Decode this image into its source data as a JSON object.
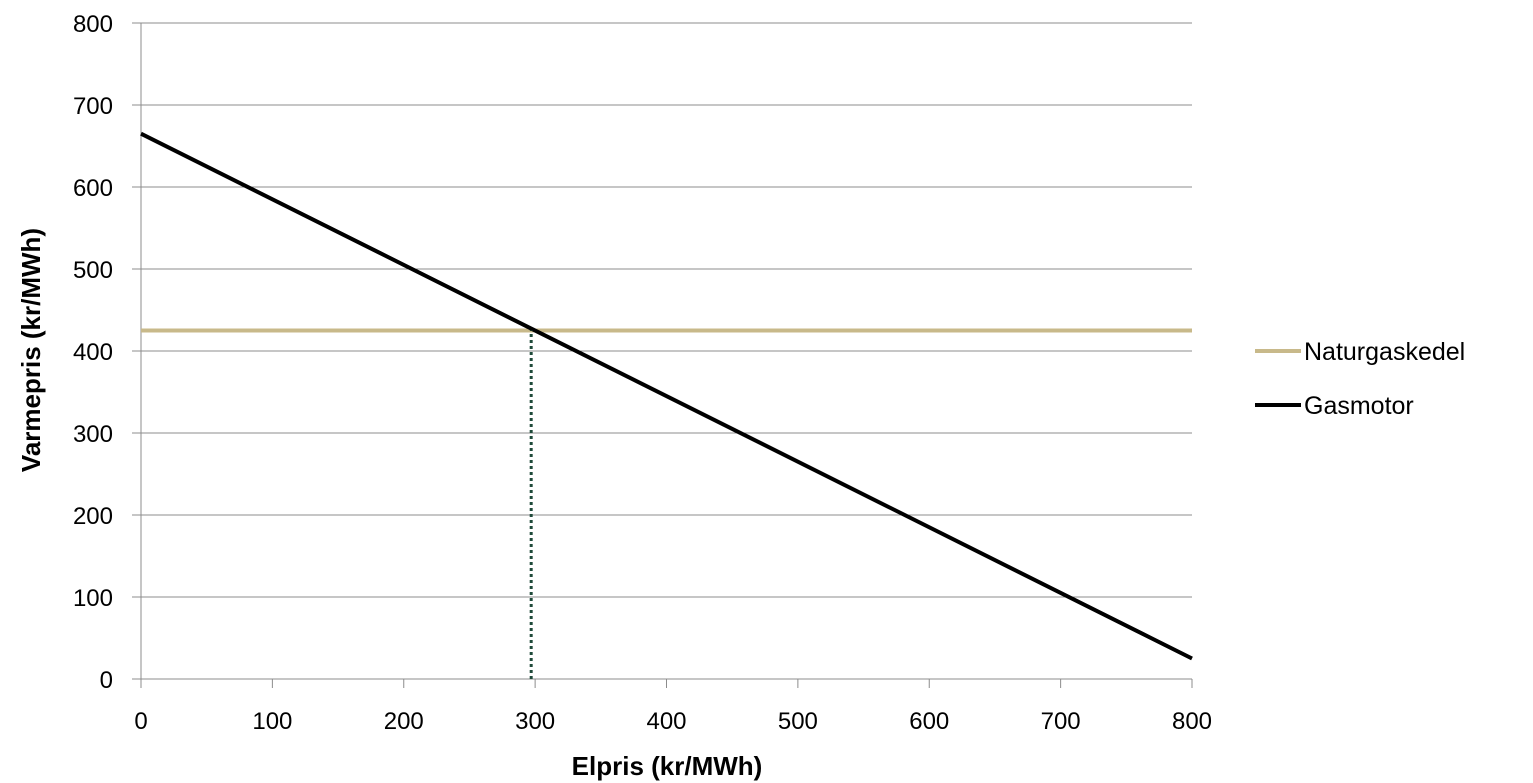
{
  "chart_data": {
    "type": "line",
    "title": "",
    "xlabel": "Elpris (kr/MWh)",
    "ylabel": "Varmepris (kr/MWh)",
    "xlim": [
      0,
      800
    ],
    "ylim": [
      0,
      800
    ],
    "x_ticks": [
      0,
      100,
      200,
      300,
      400,
      500,
      600,
      700,
      800
    ],
    "y_ticks": [
      0,
      100,
      200,
      300,
      400,
      500,
      600,
      700,
      800
    ],
    "grid": "horizontal",
    "legend_position": "right",
    "series": [
      {
        "name": "Naturgaskedel",
        "color": "#c8b98a",
        "x": [
          0,
          800
        ],
        "y": [
          425,
          425
        ]
      },
      {
        "name": "Gasmotor",
        "color": "#000000",
        "x": [
          0,
          800
        ],
        "y": [
          665,
          25
        ]
      }
    ],
    "annotations": [
      {
        "type": "vertical-dotted-line",
        "x": 297,
        "y_from": 0,
        "y_to": 425,
        "color": "#1f4a3a"
      }
    ]
  }
}
